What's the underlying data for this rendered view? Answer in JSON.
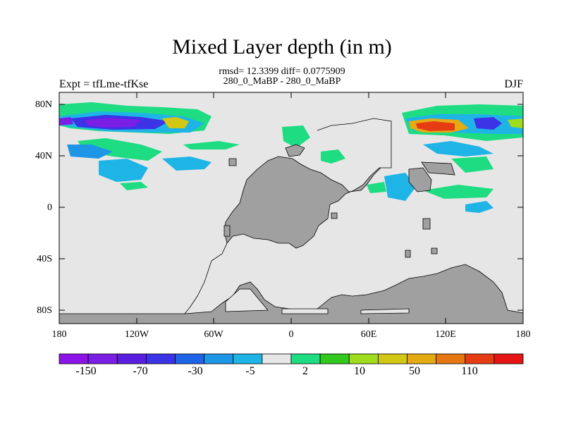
{
  "title": "Mixed Layer depth (in m)",
  "stats_line": "rmsd= 12.3399 diff= 0.0775909",
  "run_line": "280_0_MaBP - 280_0_MaBP",
  "expt_label": "Expt = tfLme-tfKse",
  "season": "DJF",
  "map": {
    "lat_ticks": [
      "80N",
      "40N",
      "0",
      "40S",
      "80S"
    ],
    "lon_ticks": [
      "180",
      "120W",
      "60W",
      "0",
      "60E",
      "120E",
      "180"
    ],
    "background_color": "#e6e6e6",
    "land_color": "#a0a0a0"
  },
  "colorbar": {
    "colors": [
      "#8c14e6",
      "#7a1ee6",
      "#5a1ee0",
      "#3c32e6",
      "#1e64e6",
      "#1e96e6",
      "#1eb4e6",
      "#e6e6e6",
      "#1edc82",
      "#32c81e",
      "#a0dc1e",
      "#d2c814",
      "#e6aa14",
      "#e67814",
      "#e63c14",
      "#e61414"
    ],
    "labels": [
      "-150",
      "-70",
      "-30",
      "-5",
      "2",
      "10",
      "50",
      "110"
    ]
  }
}
